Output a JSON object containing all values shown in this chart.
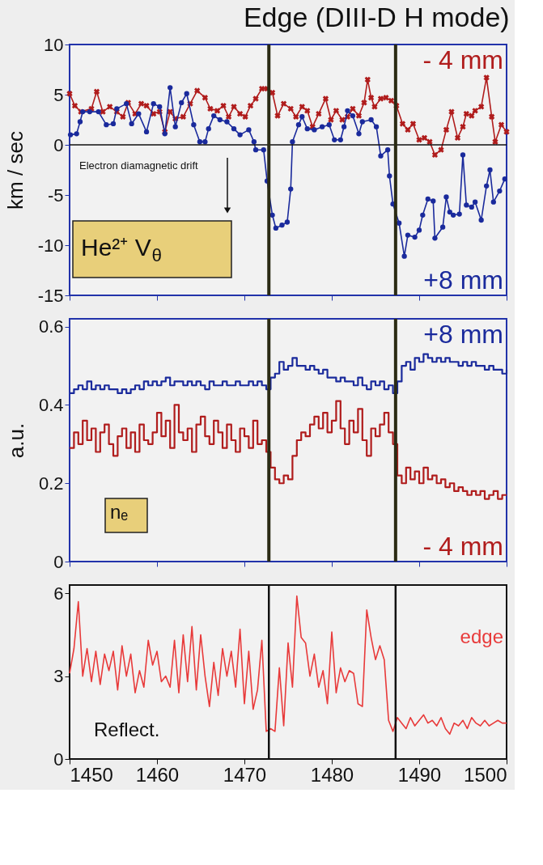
{
  "chart_data": [
    {
      "type": "line",
      "title": "Edge (DIII-D H mode)",
      "ylabel": "km / sec",
      "xlim": [
        1450,
        1500
      ],
      "xticks": [
        1450,
        1460,
        1470,
        1480,
        1490,
        1500
      ],
      "ylim": [
        -15,
        10
      ],
      "yticks": [
        -15,
        -10,
        -5,
        0,
        5,
        10
      ],
      "tick_labels": "y",
      "grid": false,
      "legend": false,
      "series": [
        {
          "name": "- 4 mm",
          "color": "#b01c1c",
          "marker": "cross",
          "x": [
            1450.0,
            1450.6,
            1451.3,
            1452.5,
            1453.1,
            1453.8,
            1454.6,
            1455.4,
            1456.1,
            1456.7,
            1457.5,
            1458.2,
            1458.8,
            1459.6,
            1460.3,
            1460.9,
            1461.5,
            1462.1,
            1463.0,
            1463.8,
            1464.6,
            1465.5,
            1466.1,
            1466.9,
            1467.6,
            1468.2,
            1468.8,
            1469.5,
            1470.1,
            1470.7,
            1471.3,
            1472.0,
            1472.6,
            1473.2,
            1473.8,
            1474.5,
            1475.3,
            1475.9,
            1476.6,
            1477.2,
            1477.8,
            1478.5,
            1479.3,
            1479.9,
            1480.5,
            1481.2,
            1481.8,
            1482.4,
            1483.1,
            1483.7,
            1484.1,
            1484.5,
            1484.9,
            1485.6,
            1486.2,
            1486.8,
            1487.4,
            1488.1,
            1488.7,
            1489.3,
            1490.0,
            1490.6,
            1491.2,
            1491.8,
            1492.5,
            1493.1,
            1493.7,
            1494.4,
            1495.0,
            1495.4,
            1496.0,
            1496.4,
            1497.1,
            1497.7,
            1498.3,
            1498.7,
            1499.4,
            1500.0
          ],
          "values": [
            5.1,
            3.9,
            3.3,
            3.6,
            5.3,
            3.3,
            3.8,
            3.3,
            2.8,
            4.2,
            3.1,
            4.1,
            3.9,
            3.1,
            3.3,
            1.3,
            3.3,
            2.6,
            2.8,
            4.1,
            5.4,
            4.7,
            3.6,
            3.4,
            3.9,
            2.8,
            3.8,
            3.1,
            2.8,
            3.9,
            4.6,
            5.6,
            5.6,
            5.2,
            2.9,
            4.1,
            3.6,
            2.8,
            3.8,
            3.4,
            1.8,
            3.1,
            4.6,
            2.5,
            3.4,
            2.5,
            2.8,
            3.6,
            2.9,
            4.2,
            6.5,
            4.7,
            3.8,
            4.6,
            4.7,
            4.4,
            3.9,
            2.1,
            1.5,
            2.1,
            0.5,
            0.7,
            0.3,
            -1.0,
            -0.5,
            1.5,
            3.3,
            0.7,
            1.8,
            3.1,
            2.9,
            3.4,
            3.8,
            6.7,
            2.8,
            0.3,
            2.0,
            1.3
          ]
        },
        {
          "name": "+8 mm",
          "color": "#1a2a9c",
          "marker": "circle",
          "x": [
            1450.1,
            1450.8,
            1451.2,
            1451.5,
            1452.3,
            1453.3,
            1454.2,
            1455.0,
            1455.4,
            1456.5,
            1457.1,
            1457.9,
            1458.8,
            1459.6,
            1460.3,
            1460.9,
            1461.5,
            1462.1,
            1462.8,
            1463.4,
            1464.2,
            1464.9,
            1465.5,
            1465.9,
            1466.5,
            1467.2,
            1468.0,
            1468.8,
            1469.5,
            1470.5,
            1471.1,
            1471.3,
            1472.2,
            1472.6,
            1473.2,
            1473.6,
            1474.3,
            1474.9,
            1475.3,
            1475.5,
            1476.2,
            1476.6,
            1477.2,
            1478.0,
            1478.9,
            1479.7,
            1480.3,
            1481.0,
            1481.4,
            1481.8,
            1482.4,
            1483.1,
            1483.5,
            1484.5,
            1485.1,
            1485.6,
            1486.4,
            1486.6,
            1487.0,
            1487.7,
            1488.3,
            1488.7,
            1489.5,
            1490.0,
            1490.4,
            1491.0,
            1491.6,
            1491.8,
            1492.7,
            1493.1,
            1493.5,
            1493.9,
            1494.6,
            1495.0,
            1495.4,
            1496.0,
            1496.4,
            1497.1,
            1497.7,
            1498.1,
            1498.5,
            1499.2,
            1499.8
          ],
          "values": [
            1.0,
            1.1,
            2.3,
            3.3,
            3.3,
            3.3,
            2.0,
            2.1,
            3.6,
            4.1,
            2.1,
            3.1,
            1.3,
            4.1,
            3.8,
            1.1,
            5.7,
            1.8,
            4.2,
            5.1,
            2.0,
            0.3,
            0.3,
            1.6,
            2.9,
            2.5,
            2.3,
            1.6,
            1.0,
            1.5,
            0.3,
            -0.5,
            -0.5,
            -3.6,
            -7.0,
            -8.3,
            -8.0,
            -7.7,
            -4.4,
            0.3,
            2.0,
            2.8,
            1.6,
            1.5,
            1.8,
            2.0,
            0.5,
            0.5,
            1.8,
            3.4,
            2.9,
            1.1,
            2.3,
            2.5,
            1.8,
            -1.1,
            -0.5,
            -3.1,
            -5.9,
            -7.8,
            -11.1,
            -9.0,
            -9.2,
            -8.5,
            -7.0,
            -5.4,
            -5.6,
            -9.3,
            -8.2,
            -5.2,
            -6.7,
            -7.0,
            -6.9,
            -1.0,
            -6.0,
            -6.2,
            -5.7,
            -7.5,
            -4.1,
            -2.5,
            -5.7,
            -4.6,
            -3.4
          ]
        }
      ],
      "ref_lines": [
        {
          "axis": "y",
          "value": 0,
          "color": "#111111"
        },
        {
          "axis": "x",
          "value": 1472.8,
          "color": "#2b2b14"
        },
        {
          "axis": "x",
          "value": 1487.3,
          "color": "#2b2b14"
        }
      ],
      "annotations": [
        "Electron diamagnetic drift",
        "He²⁺ V$_{θ}$"
      ]
    },
    {
      "type": "step",
      "ylabel": "a.u.",
      "xlim": [
        1450,
        1500
      ],
      "xticks": [
        1450,
        1460,
        1470,
        1480,
        1490,
        1500
      ],
      "ylim": [
        0,
        0.62
      ],
      "yticks": [
        0,
        0.2,
        0.4,
        0.6
      ],
      "tick_labels": "y",
      "grid": false,
      "legend": false,
      "marker": "none",
      "x": [
        1450,
        1450.5,
        1451,
        1451.5,
        1452,
        1452.5,
        1453,
        1453.5,
        1454,
        1454.5,
        1455,
        1455.5,
        1456,
        1456.5,
        1457,
        1457.5,
        1458,
        1458.5,
        1459,
        1459.5,
        1460,
        1460.5,
        1461,
        1461.5,
        1462,
        1462.5,
        1463,
        1463.5,
        1464,
        1464.5,
        1465,
        1465.5,
        1466,
        1466.5,
        1467,
        1467.5,
        1468,
        1468.5,
        1469,
        1469.5,
        1470,
        1470.5,
        1471,
        1471.5,
        1472,
        1472.5,
        1473,
        1473.5,
        1474,
        1474.5,
        1475,
        1475.5,
        1476,
        1476.5,
        1477,
        1477.5,
        1478,
        1478.5,
        1479,
        1479.5,
        1480,
        1480.5,
        1481,
        1481.5,
        1482,
        1482.5,
        1483,
        1483.5,
        1484,
        1484.5,
        1485,
        1485.5,
        1486,
        1486.5,
        1487,
        1487.5,
        1488,
        1488.5,
        1489,
        1489.5,
        1490,
        1490.5,
        1491,
        1491.5,
        1492,
        1492.5,
        1493,
        1493.5,
        1494,
        1494.5,
        1495,
        1495.5,
        1496,
        1496.5,
        1497,
        1497.5,
        1498,
        1498.5,
        1499,
        1499.5,
        1500
      ],
      "series": [
        {
          "name": "+8 mm",
          "color": "#1a2a9c",
          "values": [
            0.43,
            0.44,
            0.45,
            0.44,
            0.46,
            0.44,
            0.45,
            0.44,
            0.45,
            0.44,
            0.44,
            0.43,
            0.44,
            0.43,
            0.44,
            0.45,
            0.44,
            0.46,
            0.45,
            0.46,
            0.45,
            0.46,
            0.47,
            0.45,
            0.46,
            0.46,
            0.45,
            0.46,
            0.45,
            0.46,
            0.45,
            0.44,
            0.46,
            0.45,
            0.45,
            0.46,
            0.45,
            0.45,
            0.46,
            0.45,
            0.45,
            0.46,
            0.45,
            0.46,
            0.45,
            0.44,
            0.47,
            0.48,
            0.51,
            0.49,
            0.5,
            0.52,
            0.5,
            0.5,
            0.49,
            0.5,
            0.49,
            0.48,
            0.49,
            0.47,
            0.47,
            0.46,
            0.47,
            0.46,
            0.46,
            0.45,
            0.47,
            0.45,
            0.44,
            0.46,
            0.45,
            0.46,
            0.44,
            0.45,
            0.43,
            0.46,
            0.5,
            0.51,
            0.49,
            0.52,
            0.51,
            0.53,
            0.52,
            0.51,
            0.52,
            0.51,
            0.52,
            0.51,
            0.51,
            0.5,
            0.51,
            0.5,
            0.51,
            0.5,
            0.5,
            0.49,
            0.5,
            0.49,
            0.49,
            0.48,
            0.49
          ]
        },
        {
          "name": "- 4 mm",
          "color": "#b01c1c",
          "values": [
            0.29,
            0.33,
            0.3,
            0.36,
            0.31,
            0.34,
            0.28,
            0.33,
            0.35,
            0.3,
            0.27,
            0.32,
            0.34,
            0.29,
            0.33,
            0.28,
            0.35,
            0.31,
            0.3,
            0.33,
            0.38,
            0.32,
            0.36,
            0.29,
            0.4,
            0.33,
            0.31,
            0.34,
            0.28,
            0.35,
            0.37,
            0.32,
            0.3,
            0.36,
            0.33,
            0.29,
            0.35,
            0.31,
            0.28,
            0.34,
            0.32,
            0.29,
            0.36,
            0.3,
            0.31,
            0.28,
            0.24,
            0.21,
            0.2,
            0.22,
            0.21,
            0.27,
            0.31,
            0.33,
            0.32,
            0.35,
            0.37,
            0.34,
            0.38,
            0.33,
            0.36,
            0.41,
            0.34,
            0.3,
            0.36,
            0.33,
            0.39,
            0.31,
            0.27,
            0.34,
            0.32,
            0.35,
            0.38,
            0.33,
            0.3,
            0.22,
            0.2,
            0.24,
            0.21,
            0.23,
            0.2,
            0.24,
            0.21,
            0.22,
            0.2,
            0.21,
            0.19,
            0.2,
            0.18,
            0.19,
            0.18,
            0.17,
            0.18,
            0.17,
            0.18,
            0.16,
            0.17,
            0.18,
            0.16,
            0.17,
            0.17
          ]
        }
      ],
      "ref_lines": [
        {
          "axis": "x",
          "value": 1472.8,
          "color": "#2b2b14"
        },
        {
          "axis": "x",
          "value": 1487.3,
          "color": "#2b2b14"
        }
      ],
      "annotations": [
        "nₑ"
      ]
    },
    {
      "type": "line",
      "xlim": [
        1450,
        1500
      ],
      "xticks": [
        1450,
        1460,
        1470,
        1480,
        1490,
        1500
      ],
      "ylim": [
        0,
        6.3
      ],
      "yticks": [
        0,
        3,
        6
      ],
      "grid": false,
      "legend": false,
      "marker": "none",
      "x": [
        1450,
        1450.5,
        1451,
        1451.5,
        1452,
        1452.5,
        1453,
        1453.5,
        1454,
        1454.5,
        1455,
        1455.5,
        1456,
        1456.5,
        1457,
        1457.5,
        1458,
        1458.5,
        1459,
        1459.5,
        1460,
        1460.5,
        1461,
        1461.5,
        1462,
        1462.5,
        1463,
        1463.5,
        1464,
        1464.5,
        1465,
        1465.5,
        1466,
        1466.5,
        1467,
        1467.5,
        1468,
        1468.5,
        1469,
        1469.5,
        1470,
        1470.5,
        1471,
        1471.5,
        1472,
        1472.5,
        1473,
        1473.5,
        1474,
        1474.5,
        1475,
        1475.5,
        1476,
        1476.5,
        1477,
        1477.5,
        1478,
        1478.5,
        1479,
        1479.5,
        1480,
        1480.5,
        1481,
        1481.5,
        1482,
        1482.5,
        1483,
        1483.5,
        1484,
        1484.5,
        1485,
        1485.5,
        1486,
        1486.5,
        1487,
        1487.5,
        1488,
        1488.5,
        1489,
        1489.5,
        1490,
        1490.5,
        1491,
        1491.5,
        1492,
        1492.5,
        1493,
        1493.5,
        1494,
        1494.5,
        1495,
        1495.5,
        1496,
        1496.5,
        1497,
        1497.5,
        1498,
        1498.5,
        1499,
        1499.5,
        1500
      ],
      "series": [
        {
          "name": "edge",
          "color": "#e83a3a",
          "values": [
            3.1,
            4.0,
            5.7,
            3.0,
            4.0,
            2.8,
            3.9,
            2.7,
            3.8,
            3.2,
            3.9,
            2.5,
            4.1,
            3.0,
            3.8,
            2.4,
            3.2,
            2.6,
            4.3,
            3.4,
            3.9,
            2.8,
            3.0,
            2.6,
            4.3,
            2.4,
            4.5,
            2.8,
            4.8,
            2.5,
            4.5,
            3.0,
            1.9,
            3.5,
            2.3,
            4.0,
            3.0,
            3.9,
            2.6,
            4.7,
            2.0,
            3.9,
            1.8,
            2.5,
            4.3,
            1.0,
            1.1,
            1.0,
            3.3,
            1.2,
            4.2,
            2.6,
            5.9,
            4.4,
            4.2,
            3.0,
            3.8,
            2.6,
            3.2,
            2.0,
            4.6,
            2.4,
            3.3,
            2.8,
            3.2,
            3.1,
            2.0,
            1.9,
            5.4,
            4.4,
            3.6,
            4.1,
            3.6,
            1.4,
            1.0,
            1.5,
            1.3,
            1.1,
            1.5,
            1.2,
            1.4,
            1.6,
            1.3,
            1.4,
            1.2,
            1.5,
            1.1,
            0.9,
            1.3,
            1.2,
            1.4,
            1.1,
            1.5,
            1.3,
            1.2,
            1.4,
            1.2,
            1.3,
            1.4,
            1.3,
            1.3
          ]
        }
      ],
      "ref_lines": [
        {
          "axis": "x",
          "value": 1472.8,
          "color": "#111111"
        },
        {
          "axis": "x",
          "value": 1487.3,
          "color": "#111111"
        }
      ],
      "annotations": [
        "Reflect."
      ]
    }
  ]
}
